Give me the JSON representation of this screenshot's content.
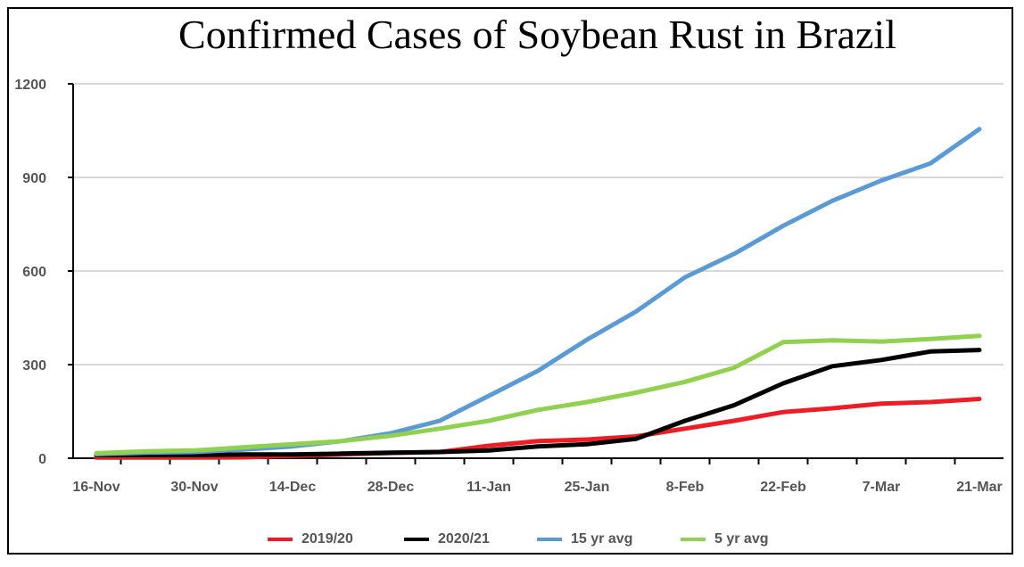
{
  "chart_data": {
    "type": "line",
    "title": "Confirmed Cases of Soybean Rust in Brazil",
    "xlabel": "",
    "ylabel": "",
    "ylim": [
      0,
      1200
    ],
    "yticks": [
      0,
      300,
      600,
      900,
      1200
    ],
    "x_tick_labels": [
      "16-Nov",
      "30-Nov",
      "14-Dec",
      "28-Dec",
      "11-Jan",
      "25-Jan",
      "8-Feb",
      "22-Feb",
      "7-Mar",
      "21-Mar"
    ],
    "x_points": [
      "16-Nov",
      "23-Nov",
      "30-Nov",
      "7-Dec",
      "14-Dec",
      "21-Dec",
      "28-Dec",
      "4-Jan",
      "11-Jan",
      "18-Jan",
      "25-Jan",
      "1-Feb",
      "8-Feb",
      "15-Feb",
      "22-Feb",
      "1-Mar",
      "7-Mar",
      "14-Mar",
      "21-Mar"
    ],
    "grid": true,
    "legend_position": "bottom",
    "series": [
      {
        "name": "2019/20",
        "color": "#ee1c25",
        "values": [
          2,
          2,
          2,
          3,
          8,
          12,
          17,
          20,
          40,
          55,
          60,
          70,
          95,
          120,
          148,
          160,
          175,
          180,
          190
        ]
      },
      {
        "name": "2020/21",
        "color": "#000000",
        "values": [
          10,
          10,
          10,
          12,
          12,
          15,
          18,
          20,
          25,
          38,
          45,
          62,
          120,
          170,
          240,
          295,
          315,
          342,
          347
        ]
      },
      {
        "name": "15 yr avg",
        "color": "#5b9bd5",
        "values": [
          13,
          18,
          20,
          28,
          38,
          55,
          80,
          120,
          200,
          280,
          380,
          470,
          580,
          655,
          745,
          825,
          890,
          945,
          1055
        ]
      },
      {
        "name": "5 yr avg",
        "color": "#92d050",
        "values": [
          16,
          22,
          25,
          35,
          45,
          55,
          72,
          95,
          120,
          155,
          180,
          210,
          245,
          290,
          372,
          378,
          374,
          382,
          392
        ]
      }
    ]
  }
}
